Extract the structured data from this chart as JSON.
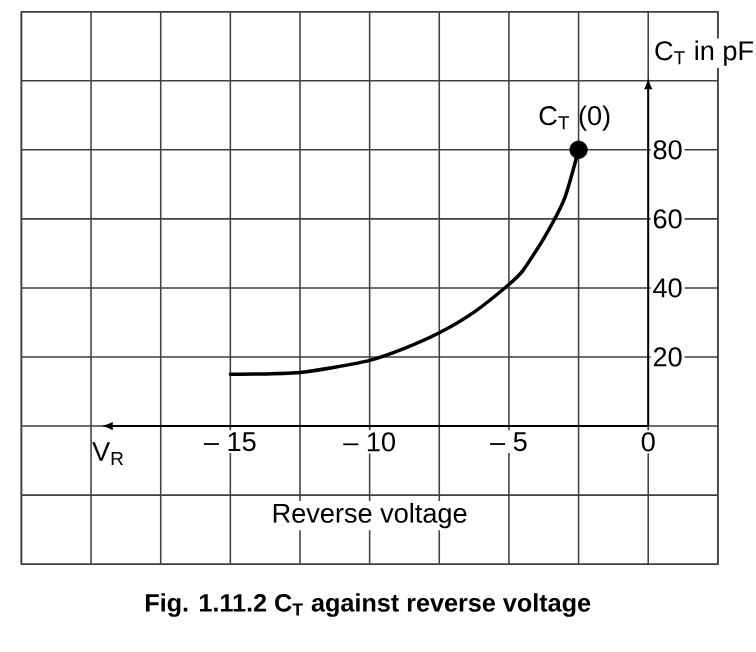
{
  "chart_data": {
    "type": "line",
    "title": "Fig. 1.11.2 C$_{T}$ against reverse voltage",
    "xlabel": "Reverse voltage",
    "ylabel": "C$_{T}$ in pF",
    "annotations": [
      "V$_{R}$",
      {
        "text": "C$_{T}$ (0)",
        "x": -2.5,
        "y": 80
      }
    ],
    "series": [
      {
        "color": "#000000",
        "marker": "none",
        "x": [
          -15,
          -13.75,
          -12.5,
          -11.25,
          -10,
          -8.75,
          -7.5,
          -6.25,
          -5,
          -4.5,
          -3.7,
          -3,
          -2.5
        ],
        "values": [
          15,
          15.1,
          15.5,
          17,
          19,
          22.5,
          27,
          33,
          41,
          45,
          55,
          66,
          80
        ]
      },
      {
        "type": "scatter",
        "color": "#000000",
        "marker": "circle",
        "x": [
          -2.5
        ],
        "values": [
          80
        ]
      }
    ],
    "xlim": [
      -22.5,
      2.5
    ],
    "ylim": [
      -40,
      120
    ],
    "xticks": [
      {
        "value": -22.5,
        "label": null
      },
      {
        "value": -20,
        "label": null
      },
      {
        "value": -17.5,
        "label": null
      },
      {
        "value": -15,
        "label": "– 15"
      },
      {
        "value": -12.5,
        "label": null
      },
      {
        "value": -10,
        "label": "– 10"
      },
      {
        "value": -7.5,
        "label": null
      },
      {
        "value": -5,
        "label": "– 5"
      },
      {
        "value": -2.5,
        "label": null
      },
      0,
      {
        "value": 2.5,
        "label": null
      }
    ],
    "yticks": [
      {
        "value": -40,
        "label": null
      },
      {
        "value": -20,
        "label": null
      },
      {
        "value": 0,
        "label": null
      },
      20,
      40,
      60,
      80,
      {
        "value": 100,
        "label": null
      },
      {
        "value": 120,
        "label": null
      }
    ],
    "grid": true
  }
}
